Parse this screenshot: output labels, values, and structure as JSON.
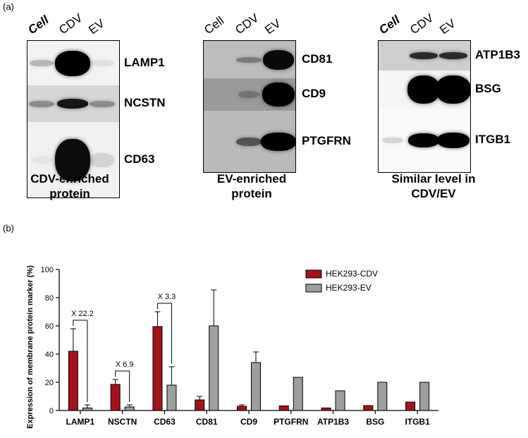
{
  "panel_a": {
    "tag": "(a)",
    "groups": [
      {
        "lanes": [
          "Cell",
          "CDV",
          "EV"
        ],
        "markers": [
          "LAMP1",
          "NCSTN",
          "CD63"
        ],
        "caption_line1": "CDV-enriched",
        "caption_line2": "protein"
      },
      {
        "lanes": [
          "Cell",
          "CDV",
          "EV"
        ],
        "markers": [
          "CD81",
          "CD9",
          "PTGFRN"
        ],
        "caption_line1": "EV-enriched",
        "caption_line2": "protein"
      },
      {
        "lanes": [
          "Cell",
          "CDV",
          "EV"
        ],
        "markers": [
          "ATP1B3",
          "BSG",
          "ITGB1"
        ],
        "caption_line1": "Similar level in",
        "caption_line2": "CDV/EV"
      }
    ]
  },
  "panel_b": {
    "tag": "(b)"
  },
  "chart_data": {
    "type": "bar",
    "ylabel": "Expression of membrane protein marker  (%)",
    "xlabel": "",
    "ylim": [
      0,
      100
    ],
    "yticks": [
      0,
      20,
      40,
      60,
      80,
      100
    ],
    "categories": [
      "LAMP1",
      "NSCTN",
      "CD63",
      "CD81",
      "CD9",
      "PTGFRN",
      "ATP1B3",
      "BSG",
      "ITGB1"
    ],
    "series": [
      {
        "name": "HEK293-CDV",
        "color": "#a3131c",
        "values": [
          42,
          18.5,
          59.5,
          7.5,
          3,
          3.3,
          1.8,
          3.5,
          6
        ],
        "errors": [
          16,
          3.5,
          10.5,
          2.5,
          1,
          0,
          0,
          0,
          0
        ]
      },
      {
        "name": "HEK293-EV",
        "color": "#9e9e9e",
        "values": [
          1.8,
          2.5,
          18,
          60,
          34,
          23.5,
          14,
          20,
          20
        ],
        "errors": [
          2.2,
          1.5,
          13,
          25.5,
          7.5,
          0,
          0,
          0,
          0
        ]
      }
    ],
    "annotations": [
      {
        "text": "X 22.2",
        "category": "LAMP1"
      },
      {
        "text": "X 6.9",
        "category": "NSCTN"
      },
      {
        "text": "X 3.3",
        "category": "CD63"
      }
    ],
    "legend_position": "top-right",
    "grid": false
  }
}
